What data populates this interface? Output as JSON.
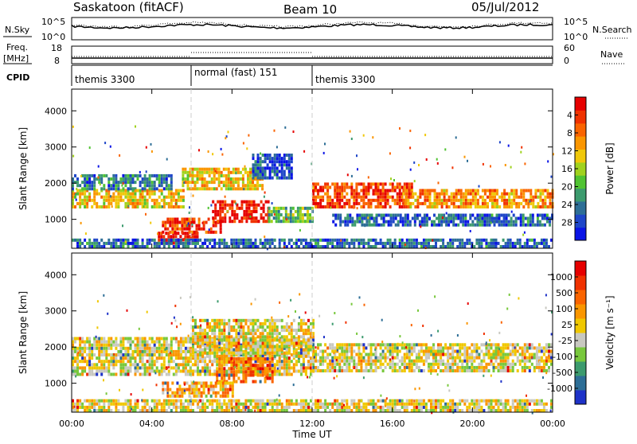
{
  "header": {
    "title": "Saskatoon (fitACF)",
    "beam": "Beam 10",
    "date": "05/Jul/2012"
  },
  "top_panel": {
    "left_label": "N.Sky",
    "right_label": "N.Search",
    "left_ticks": [
      "10^5",
      "10^0"
    ],
    "right_ticks": [
      "10^5",
      "10^0"
    ]
  },
  "freq_panel": {
    "left_label_1": "Freq.",
    "left_label_2": "[MHz]",
    "right_label": "Nave",
    "left_ticks": [
      "18",
      "8"
    ],
    "right_ticks": [
      "60",
      "0"
    ]
  },
  "cpid": {
    "label": "CPID",
    "segments": [
      {
        "label": "themis 3300",
        "start_hour": 0,
        "end_hour": 6
      },
      {
        "label": "normal (fast) 151",
        "start_hour": 6,
        "end_hour": 12
      },
      {
        "label": "themis 3300",
        "start_hour": 12,
        "end_hour": 24
      }
    ]
  },
  "chart_data": [
    {
      "type": "heatmap",
      "title": "",
      "xlabel": "",
      "ylabel": "Slant Range [km]",
      "xlim": [
        0,
        24
      ],
      "ylim": [
        200,
        4600
      ],
      "yticks": [
        1000,
        2000,
        3000,
        4000
      ],
      "colorbar": {
        "label": "Power [dB]",
        "ticks": [
          "4",
          "8",
          "12",
          "16",
          "20",
          "24",
          "28"
        ],
        "range": [
          0,
          32
        ],
        "colors": [
          "#0a14e6",
          "#1e46c8",
          "#2d6e96",
          "#3c9b6e",
          "#50c332",
          "#a0d21e",
          "#f0c80a",
          "#fa9600",
          "#fa6400",
          "#f03200",
          "#e60000"
        ]
      },
      "bands": [
        {
          "t0": 0.0,
          "t1": 5.6,
          "r_lo": 1300,
          "r_hi": 1800,
          "level": 0.6
        },
        {
          "t0": 0.0,
          "t1": 5.0,
          "r_lo": 1800,
          "r_hi": 2200,
          "level": 0.25
        },
        {
          "t0": 4.3,
          "t1": 6.3,
          "r_lo": 300,
          "r_hi": 600,
          "level": 0.92
        },
        {
          "t0": 4.5,
          "t1": 7.5,
          "r_lo": 600,
          "r_hi": 1000,
          "level": 0.85
        },
        {
          "t0": 5.5,
          "t1": 9.5,
          "r_lo": 1800,
          "r_hi": 2400,
          "level": 0.6
        },
        {
          "t0": 7.0,
          "t1": 9.8,
          "r_lo": 900,
          "r_hi": 1500,
          "level": 0.95
        },
        {
          "t0": 9.8,
          "t1": 12.0,
          "r_lo": 900,
          "r_hi": 1300,
          "level": 0.4
        },
        {
          "t0": 9.0,
          "t1": 11.0,
          "r_lo": 2100,
          "r_hi": 2800,
          "level": 0.15
        },
        {
          "t0": 12.0,
          "t1": 17.0,
          "r_lo": 1300,
          "r_hi": 2000,
          "level": 0.85
        },
        {
          "t0": 16.5,
          "t1": 24.0,
          "r_lo": 1300,
          "r_hi": 1800,
          "level": 0.7
        },
        {
          "t0": 13.0,
          "t1": 24.0,
          "r_lo": 800,
          "r_hi": 1100,
          "level": 0.2
        },
        {
          "t0": 0.0,
          "t1": 24.0,
          "r_lo": 200,
          "r_hi": 400,
          "level": 0.2
        }
      ]
    },
    {
      "type": "heatmap",
      "title": "",
      "xlabel": "Time UT",
      "ylabel": "Slant Range [km]",
      "xlim": [
        0,
        24
      ],
      "ylim": [
        200,
        4600
      ],
      "yticks": [
        1000,
        2000,
        3000,
        4000
      ],
      "xticks": [
        "00:00",
        "04:00",
        "08:00",
        "12:00",
        "16:00",
        "20:00",
        "00:00"
      ],
      "colorbar": {
        "label": "Velocity [m s⁻¹]",
        "ticks": [
          "1000",
          "500",
          "100",
          "25",
          "-25",
          "-100",
          "-500",
          "-1000"
        ],
        "colors": [
          "#1e32c8",
          "#2d6e96",
          "#3c9b6e",
          "#78c83c",
          "#c8c8c0",
          "#f0c800",
          "#fa9600",
          "#fa6400",
          "#f03200",
          "#e60000"
        ]
      },
      "bands": [
        {
          "t0": 0.0,
          "t1": 12.0,
          "r_lo": 1200,
          "r_hi": 2200,
          "level": 0.5
        },
        {
          "t0": 6.0,
          "t1": 12.0,
          "r_lo": 1700,
          "r_hi": 2700,
          "level": 0.5
        },
        {
          "t0": 7.2,
          "t1": 10.0,
          "r_lo": 1000,
          "r_hi": 1700,
          "level": 0.75
        },
        {
          "t0": 4.5,
          "t1": 8.0,
          "r_lo": 600,
          "r_hi": 1000,
          "level": 0.62
        },
        {
          "t0": 12.0,
          "t1": 24.0,
          "r_lo": 1300,
          "r_hi": 2100,
          "level": 0.5
        },
        {
          "t0": 0.0,
          "t1": 24.0,
          "r_lo": 200,
          "r_hi": 500,
          "level": 0.5
        }
      ]
    }
  ]
}
